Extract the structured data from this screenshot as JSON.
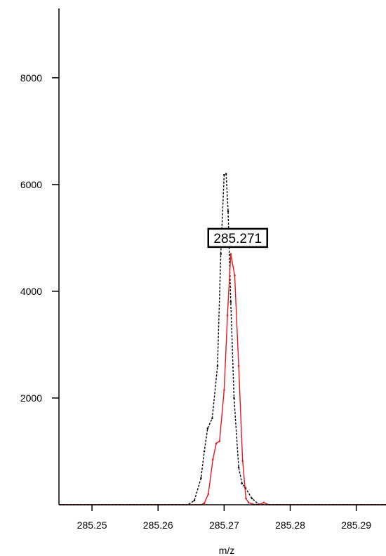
{
  "chart_data": {
    "type": "line",
    "xlabel": "m/z",
    "ylabel": "",
    "xlim": [
      285.245,
      285.2945
    ],
    "ylim": [
      0,
      9300
    ],
    "x_ticks": [
      285.25,
      285.26,
      285.27,
      285.28,
      285.29
    ],
    "x_tick_labels": [
      "285.25",
      "285.26",
      "285.27",
      "285.28",
      "285.29"
    ],
    "y_ticks": [
      2000,
      4000,
      6000,
      8000
    ],
    "y_tick_labels": [
      "2000",
      "4000",
      "6000",
      "8000"
    ],
    "grid": false,
    "annotations": [
      {
        "text": "285.271",
        "x": 285.271,
        "y": 5000
      }
    ],
    "series": [
      {
        "color": "#000000",
        "style": "dashed",
        "x": [
          285.245,
          285.2645,
          285.2655,
          285.2665,
          285.267,
          285.2675,
          285.2682,
          285.269,
          285.2695,
          285.27,
          285.2703,
          285.2706,
          285.271,
          285.2715,
          285.2722,
          285.2727,
          285.2732,
          285.2742,
          285.2752,
          285.2765,
          285.278,
          285.2945
        ],
        "y": [
          0,
          0,
          80,
          500,
          1000,
          1430,
          1620,
          2600,
          4700,
          6180,
          6200,
          5500,
          3800,
          2000,
          700,
          400,
          320,
          120,
          10,
          0,
          0,
          0
        ]
      },
      {
        "color": "#e31a1c",
        "style": "solid",
        "x": [
          285.245,
          285.2665,
          285.267,
          285.2676,
          285.2683,
          285.2688,
          285.2693,
          285.27,
          285.2705,
          285.271,
          285.2716,
          285.2722,
          285.2728,
          285.2733,
          285.2737,
          285.2745,
          285.2752,
          285.276,
          285.2768,
          285.2945
        ],
        "y": [
          0,
          0,
          30,
          200,
          850,
          1150,
          1190,
          2150,
          3550,
          4700,
          4300,
          2600,
          820,
          120,
          40,
          5,
          5,
          40,
          0,
          0
        ]
      }
    ]
  }
}
